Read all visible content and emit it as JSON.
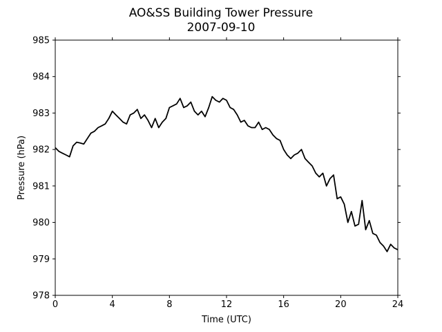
{
  "chart_data": {
    "type": "line",
    "title": "AO&SS Building Tower Pressure",
    "subtitle": "2007-09-10",
    "xlabel": "Time (UTC)",
    "ylabel": "Pressure (hPa)",
    "xlim": [
      0,
      24
    ],
    "ylim": [
      978,
      985
    ],
    "xticks": [
      0,
      4,
      8,
      12,
      16,
      20,
      24
    ],
    "yticks": [
      978,
      979,
      980,
      981,
      982,
      983,
      984,
      985
    ],
    "grid": false,
    "line_color": "#000000",
    "series": [
      {
        "x": [
          0,
          0.25,
          0.5,
          0.75,
          1,
          1.25,
          1.5,
          1.75,
          2,
          2.25,
          2.5,
          2.75,
          3,
          3.25,
          3.5,
          3.75,
          4,
          4.25,
          4.5,
          4.75,
          5,
          5.25,
          5.5,
          5.75,
          6,
          6.25,
          6.5,
          6.75,
          7,
          7.25,
          7.5,
          7.75,
          8,
          8.25,
          8.5,
          8.75,
          9,
          9.25,
          9.5,
          9.75,
          10,
          10.25,
          10.5,
          10.75,
          11,
          11.25,
          11.5,
          11.75,
          12,
          12.25,
          12.5,
          12.75,
          13,
          13.25,
          13.5,
          13.75,
          14,
          14.25,
          14.5,
          14.75,
          15,
          15.25,
          15.5,
          15.75,
          16,
          16.25,
          16.5,
          16.75,
          17,
          17.25,
          17.5,
          17.75,
          18,
          18.25,
          18.5,
          18.75,
          19,
          19.25,
          19.5,
          19.75,
          20,
          20.25,
          20.5,
          20.75,
          21,
          21.25,
          21.5,
          21.75,
          22,
          22.25,
          22.5,
          22.75,
          23,
          23.25,
          23.5,
          23.75,
          24
        ],
        "values": [
          982.05,
          981.95,
          981.9,
          981.85,
          981.8,
          982.1,
          982.2,
          982.18,
          982.15,
          982.3,
          982.45,
          982.5,
          982.6,
          982.65,
          982.7,
          982.85,
          983.05,
          982.95,
          982.85,
          982.75,
          982.7,
          982.95,
          983.0,
          983.1,
          982.85,
          982.95,
          982.8,
          982.6,
          982.85,
          982.6,
          982.75,
          982.85,
          983.15,
          983.2,
          983.25,
          983.4,
          983.15,
          983.2,
          983.3,
          983.05,
          982.95,
          983.05,
          982.9,
          983.15,
          983.45,
          983.35,
          983.3,
          983.4,
          983.35,
          983.15,
          983.1,
          982.95,
          982.75,
          982.8,
          982.65,
          982.6,
          982.6,
          982.75,
          982.55,
          982.6,
          982.55,
          982.4,
          982.3,
          982.25,
          982.0,
          981.85,
          981.75,
          981.85,
          981.9,
          982.0,
          981.75,
          981.65,
          981.55,
          981.35,
          981.25,
          981.35,
          981.0,
          981.2,
          981.3,
          980.65,
          980.7,
          980.5,
          980.0,
          980.3,
          979.9,
          979.95,
          980.6,
          979.8,
          980.05,
          979.7,
          979.65,
          979.45,
          979.35,
          979.2,
          979.4,
          979.3,
          979.25
        ]
      }
    ]
  }
}
